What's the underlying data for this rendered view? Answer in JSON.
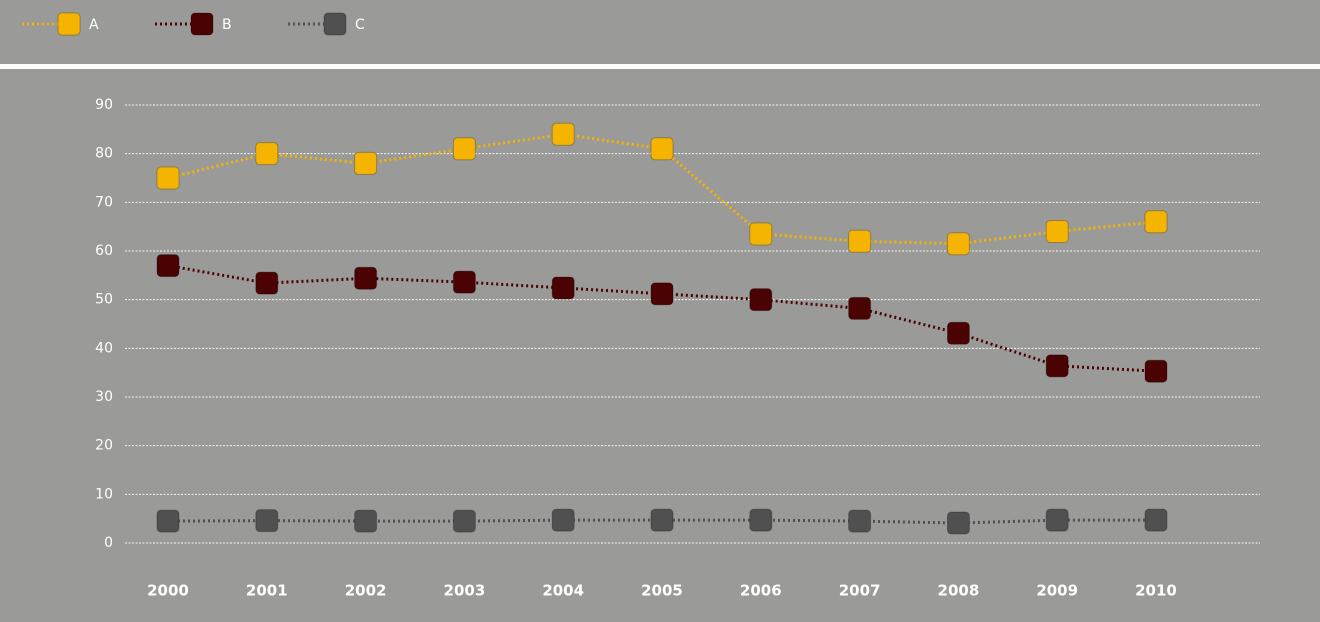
{
  "chart_data": {
    "type": "line",
    "categories": [
      "2000",
      "2001",
      "2002",
      "2003",
      "2004",
      "2005",
      "2006",
      "2007",
      "2008",
      "2009",
      "2010"
    ],
    "series": [
      {
        "name": "A",
        "color": "#f5b400",
        "values": [
          75,
          80,
          78,
          81,
          84,
          81,
          63.5,
          62,
          61.5,
          64,
          66
        ]
      },
      {
        "name": "B",
        "color": "#4a0202",
        "values": [
          57,
          53.4,
          54.4,
          53.6,
          52.4,
          51.2,
          50,
          48.2,
          43.1,
          36.4,
          35.3
        ]
      },
      {
        "name": "C",
        "color": "#505050",
        "values": [
          4.5,
          4.6,
          4.5,
          4.5,
          4.7,
          4.7,
          4.7,
          4.5,
          4.1,
          4.7,
          4.7
        ]
      }
    ],
    "ylim": [
      0,
      90
    ],
    "yticks": [
      0,
      10,
      20,
      30,
      40,
      50,
      60,
      70,
      80,
      90
    ],
    "grid": true
  }
}
